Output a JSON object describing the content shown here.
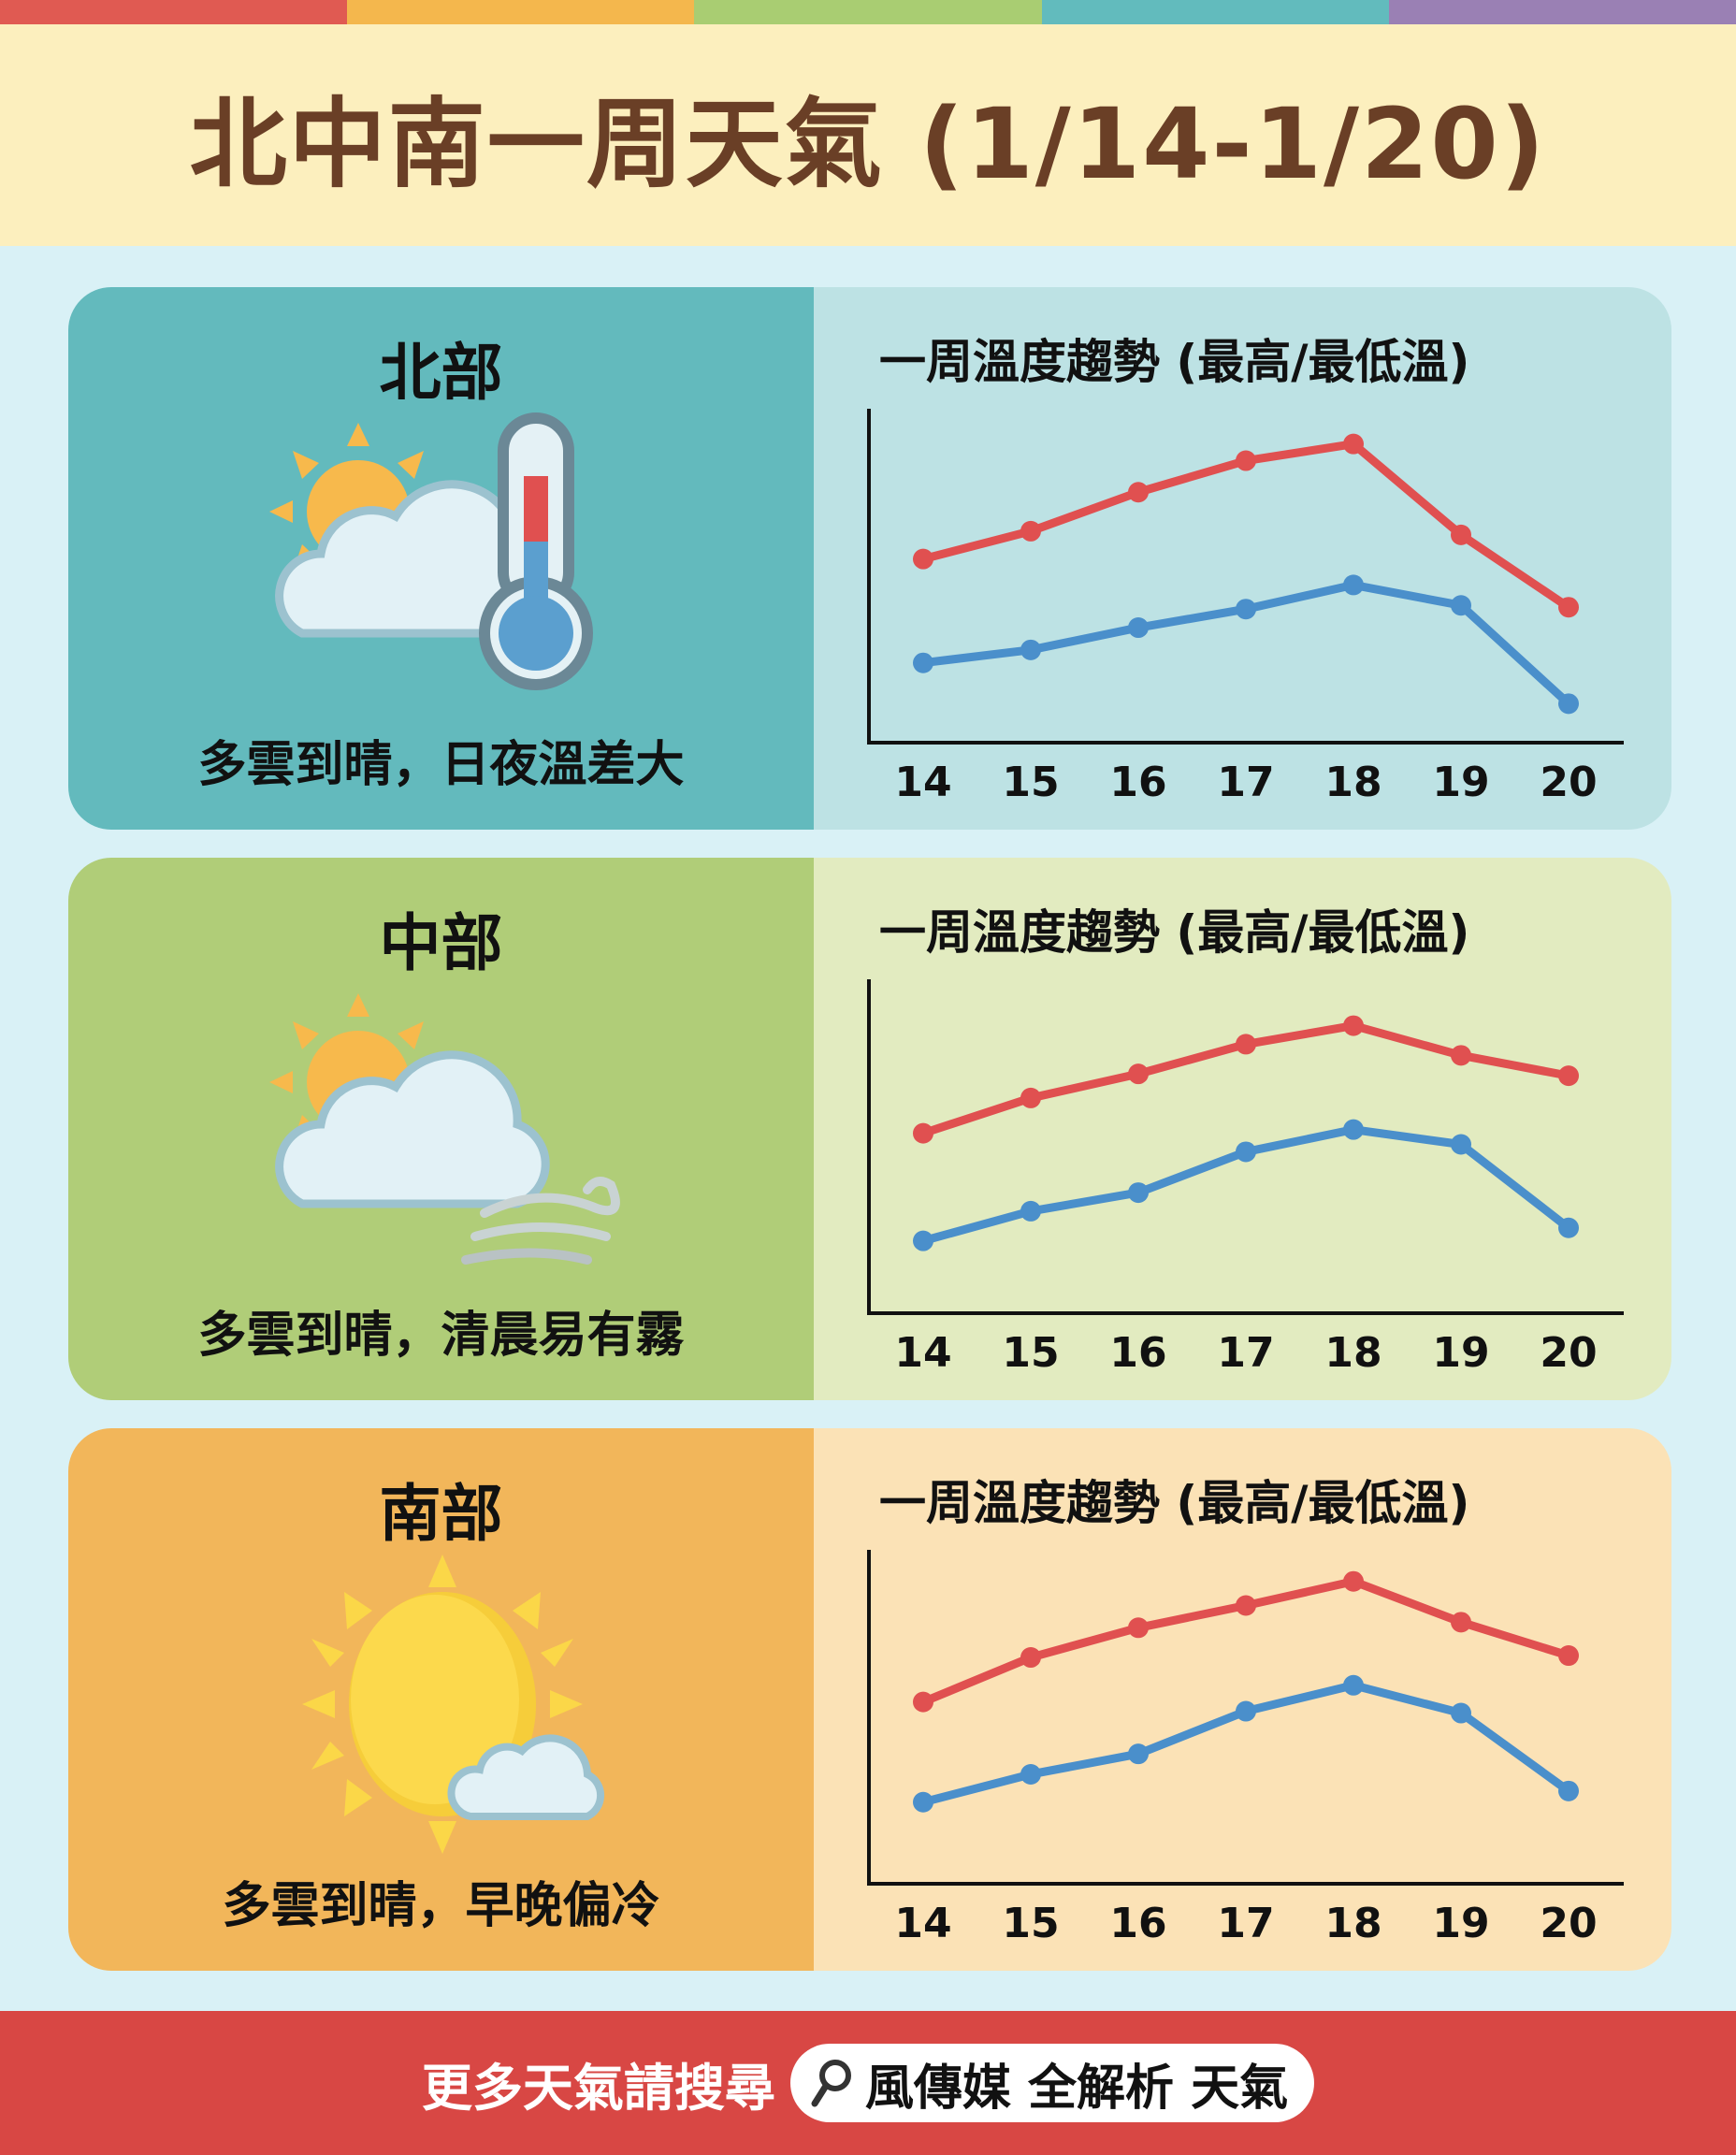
{
  "header": {
    "title": "北中南一周天氣 (1/14-1/20)",
    "stripe_colors": [
      "#e05a52",
      "#f4b74d",
      "#a9cd72",
      "#62bbbd",
      "#9a80b4"
    ],
    "band_color": "#fcefbe",
    "title_color": "#6a3f26"
  },
  "regions": [
    {
      "name": "北部",
      "caption": "多雲到晴，日夜溫差大",
      "icon": "partly-cloudy-thermometer-icon",
      "left_color": "#63babd",
      "right_color": "#bde2e4",
      "chart_title": "一周溫度趨勢 (最高/最低溫)"
    },
    {
      "name": "中部",
      "caption": "多雲到晴，清晨易有霧",
      "icon": "partly-cloudy-fog-icon",
      "left_color": "#b0cd78",
      "right_color": "#e2ebc0",
      "chart_title": "一周溫度趨勢 (最高/最低溫)"
    },
    {
      "name": "南部",
      "caption": "多雲到晴，早晚偏冷",
      "icon": "sunny-small-cloud-icon",
      "left_color": "#f2b65a",
      "right_color": "#fbe2b6",
      "chart_title": "一周溫度趨勢 (最高/最低溫)"
    }
  ],
  "footer": {
    "lead": "更多天氣請搜尋",
    "search_text": "風傳媒 全解析 天氣",
    "search_icon": "search-icon",
    "color": "#d84744"
  },
  "chart_data": [
    {
      "type": "line",
      "title": "北部 一周溫度趨勢 (最高/最低溫)",
      "categories": [
        "14",
        "15",
        "16",
        "17",
        "18",
        "19",
        "20"
      ],
      "series": [
        {
          "name": "最高溫",
          "color": "#e05050",
          "values": [
            17.9,
            19.4,
            21.5,
            23.2,
            24.1,
            19.2,
            15.3
          ]
        },
        {
          "name": "最低溫",
          "color": "#4a8fcb",
          "values": [
            12.3,
            13.0,
            14.2,
            15.2,
            16.5,
            15.4,
            10.1
          ]
        }
      ],
      "xlabel": "",
      "ylabel": "",
      "ylim": [
        8,
        26
      ],
      "grid": false,
      "legend": "none",
      "note": "y-axis unlabeled; values estimated from relative positions"
    },
    {
      "type": "line",
      "title": "中部 一周溫度趨勢 (最高/最低溫)",
      "categories": [
        "14",
        "15",
        "16",
        "17",
        "18",
        "19",
        "20"
      ],
      "series": [
        {
          "name": "最高溫",
          "color": "#e05050",
          "values": [
            17.7,
            19.6,
            20.9,
            22.5,
            23.5,
            21.9,
            20.8
          ]
        },
        {
          "name": "最低溫",
          "color": "#4a8fcb",
          "values": [
            11.9,
            13.5,
            14.5,
            16.7,
            17.9,
            17.1,
            12.6
          ]
        }
      ],
      "xlabel": "",
      "ylabel": "",
      "ylim": [
        8,
        26
      ],
      "grid": false,
      "legend": "none",
      "note": "y-axis unlabeled; values estimated from relative positions"
    },
    {
      "type": "line",
      "title": "南部 一周溫度趨勢 (最高/最低溫)",
      "categories": [
        "14",
        "15",
        "16",
        "17",
        "18",
        "19",
        "20"
      ],
      "series": [
        {
          "name": "最高溫",
          "color": "#e05050",
          "values": [
            17.8,
            20.2,
            21.8,
            23.0,
            24.3,
            22.1,
            20.3
          ]
        },
        {
          "name": "最低溫",
          "color": "#4a8fcb",
          "values": [
            12.4,
            13.9,
            15.0,
            17.3,
            18.7,
            17.2,
            13.0
          ]
        }
      ],
      "xlabel": "",
      "ylabel": "",
      "ylim": [
        8,
        26
      ],
      "grid": false,
      "legend": "none",
      "note": "y-axis unlabeled; values estimated from relative positions"
    }
  ]
}
